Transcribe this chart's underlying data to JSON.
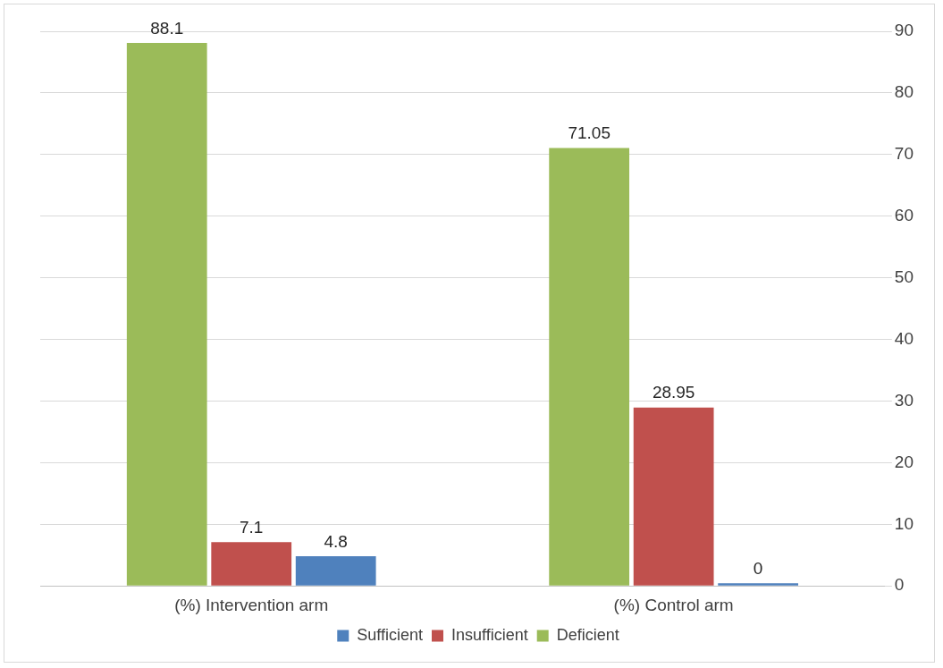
{
  "chart_data": {
    "type": "bar",
    "categories": [
      "(%) Intervention arm",
      "(%) Control arm"
    ],
    "series": [
      {
        "name": "Deficient",
        "color": "#9bbb59",
        "values": [
          88.1,
          71.05
        ]
      },
      {
        "name": "Insufficient",
        "color": "#c0504d",
        "values": [
          7.1,
          28.95
        ]
      },
      {
        "name": "Sufficient",
        "color": "#4f81bd",
        "values": [
          4.8,
          0
        ]
      }
    ],
    "ylim": [
      0,
      90
    ],
    "yticks": [
      0,
      10,
      20,
      30,
      40,
      50,
      60,
      70,
      80,
      90
    ],
    "grid": "y",
    "legend": "bottom",
    "data_labels": true
  }
}
